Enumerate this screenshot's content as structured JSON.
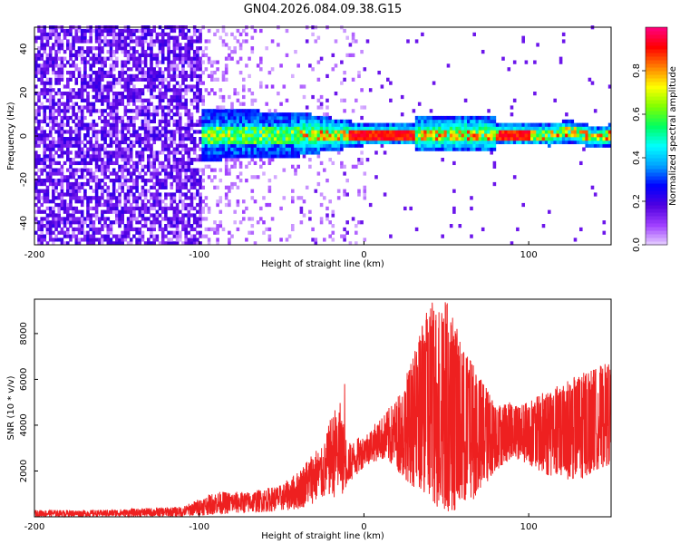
{
  "title": "GN04.2026.084.09.38.G15",
  "chart_data": [
    {
      "type": "heatmap",
      "xlabel": "Height of straight line (km)",
      "ylabel": "Frequency (Hz)",
      "xlim": [
        -200,
        150
      ],
      "ylim": [
        -50,
        50
      ],
      "xticks": [
        -200,
        -100,
        0,
        100
      ],
      "yticks": [
        -40,
        -20,
        0,
        20,
        40
      ],
      "colorbar": {
        "label": "Normalized spectral amplitude",
        "range": [
          0,
          1
        ],
        "ticks": [
          "0.0",
          "0.2",
          "0.4",
          "0.6",
          "0.8"
        ],
        "colormap": [
          "#e6d0ff",
          "#a040ff",
          "#5000e0",
          "#0000ff",
          "#00a0ff",
          "#00ffff",
          "#00ff60",
          "#80ff00",
          "#ffff00",
          "#ff8000",
          "#ff0000",
          "#ff0080"
        ]
      },
      "regions": [
        {
          "x": [
            -200,
            -100
          ],
          "description": "broadband noise, amplitude 0.1-0.2, spans full frequency range"
        },
        {
          "x": [
            -100,
            -40
          ],
          "description": "noise fading, band concentrated within ±10 Hz"
        },
        {
          "x": [
            -100,
            150
          ],
          "center_freq_hz": 0,
          "peak_amplitude": 0.9
        }
      ]
    },
    {
      "type": "line",
      "xlabel": "Height of straight line (km)",
      "ylabel": "SNR (10 * v/v)",
      "xlim": [
        -200,
        150
      ],
      "ylim": [
        0,
        9500
      ],
      "xticks": [
        -200,
        -100,
        0,
        100
      ],
      "yticks": [
        2000,
        4000,
        6000,
        8000
      ],
      "color": "#ee2020",
      "envelope": {
        "x": [
          -200,
          -160,
          -110,
          -100,
          -90,
          -70,
          -50,
          -40,
          -30,
          -25,
          -20,
          -15,
          -10,
          -5,
          0,
          10,
          20,
          30,
          40,
          50,
          60,
          70,
          80,
          90,
          100,
          110,
          120,
          130,
          140,
          150
        ],
        "min": [
          0,
          0,
          0,
          50,
          100,
          150,
          250,
          300,
          600,
          700,
          900,
          700,
          1400,
          1700,
          2200,
          2500,
          2000,
          1300,
          500,
          200,
          300,
          1000,
          2000,
          2600,
          2300,
          1800,
          1700,
          1500,
          2000,
          2300
        ],
        "max": [
          300,
          300,
          450,
          800,
          1100,
          1100,
          1400,
          2000,
          3000,
          3000,
          4400,
          5200,
          3200,
          3400,
          3600,
          4300,
          5200,
          7000,
          9500,
          9500,
          7500,
          6200,
          5000,
          5000,
          5000,
          5500,
          5800,
          6200,
          6500,
          6800
        ]
      }
    }
  ]
}
